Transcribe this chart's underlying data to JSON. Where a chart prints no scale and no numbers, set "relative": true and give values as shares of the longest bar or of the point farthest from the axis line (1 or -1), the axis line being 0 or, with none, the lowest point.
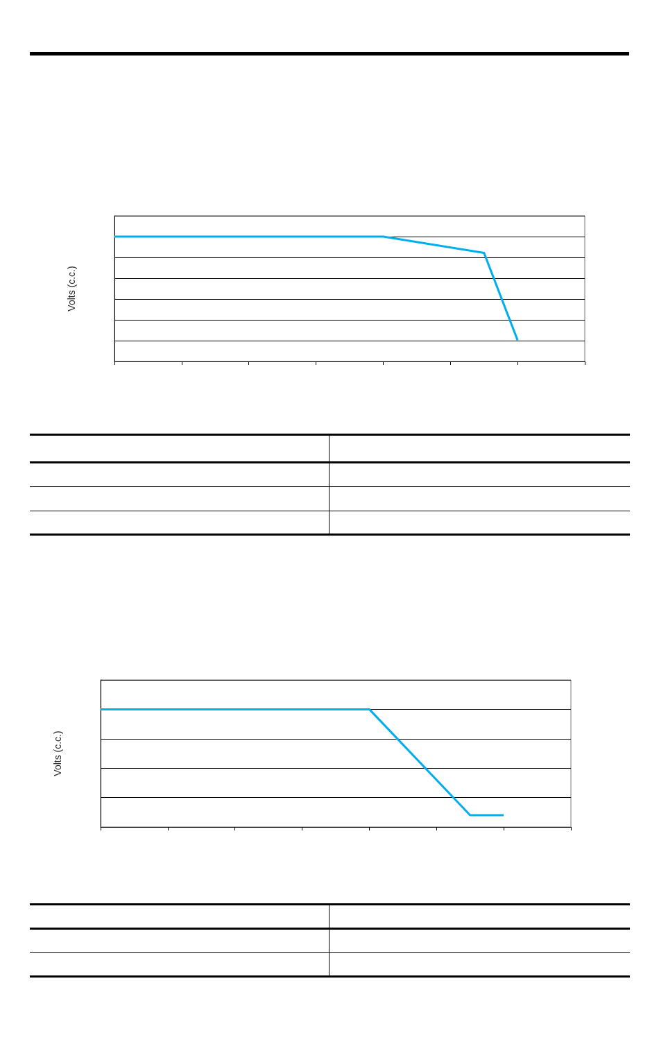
{
  "chart_data": [
    {
      "type": "line",
      "ylabel": "Volts (c.c.)",
      "categories": [
        null,
        null,
        null,
        null,
        null,
        null,
        null,
        null,
        null,
        null,
        null,
        null,
        null,
        null,
        null
      ],
      "relative": true,
      "grid": "y",
      "series": [
        {
          "color": "#00aeef",
          "values": [
            1,
            null,
            1,
            null,
            1,
            null,
            1,
            null,
            1,
            null,
            null,
            0.87,
            0.17,
            null,
            null
          ]
        }
      ]
    },
    {
      "type": "line",
      "ylabel": "Volts (c.c.)",
      "categories": [
        null,
        null,
        null,
        null,
        null,
        null,
        null,
        null,
        null,
        null,
        null,
        null,
        null,
        null,
        null
      ],
      "relative": true,
      "grid": "y",
      "series": [
        {
          "color": "#00aeef",
          "values": [
            1,
            null,
            1,
            null,
            1,
            null,
            1,
            null,
            1,
            null,
            null,
            0.1,
            0.1,
            null,
            null
          ]
        }
      ]
    }
  ]
}
